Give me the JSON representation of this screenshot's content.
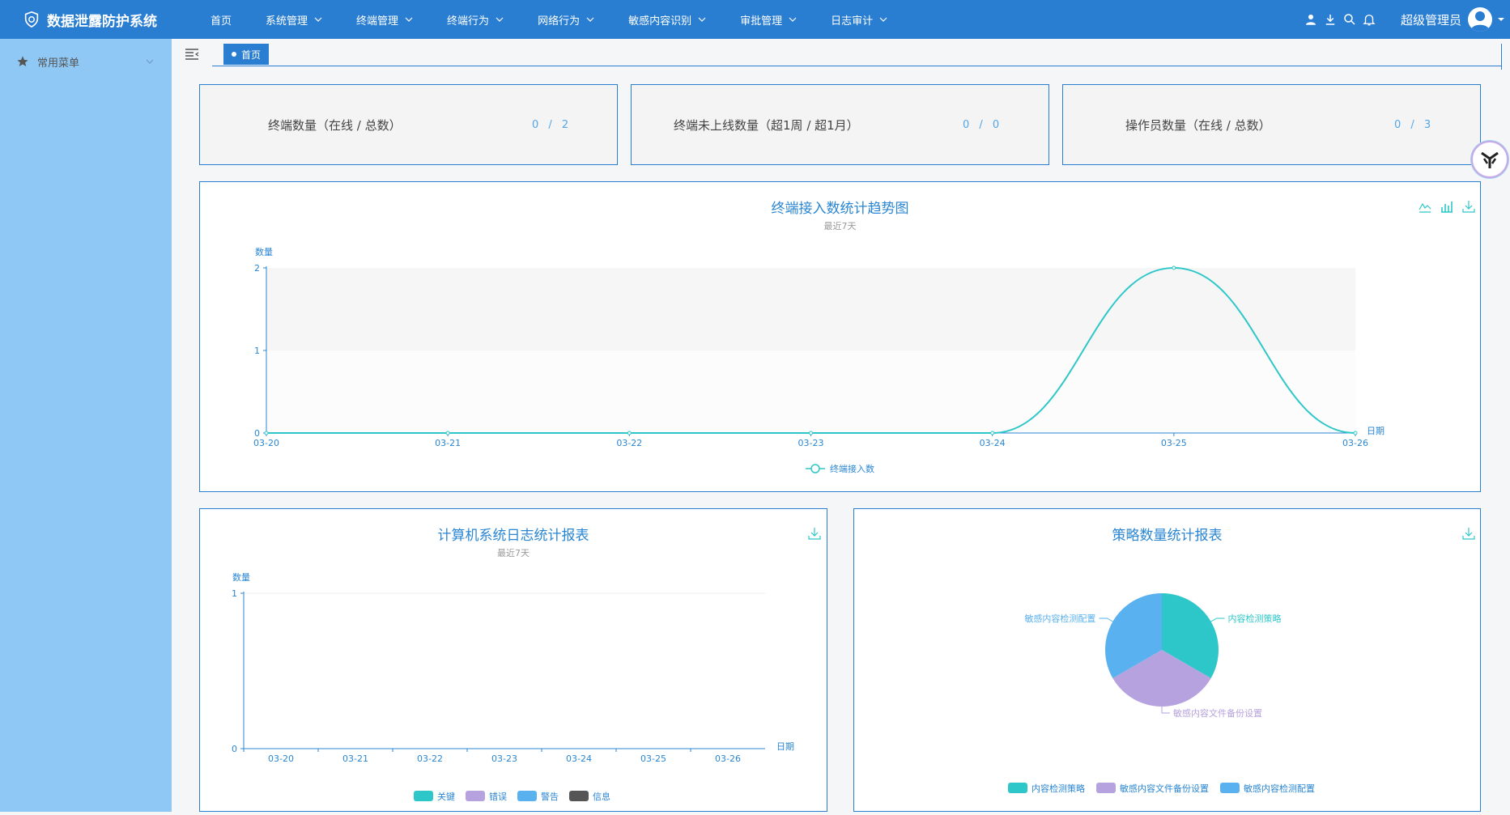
{
  "app": {
    "title": "数据泄露防护系统"
  },
  "nav": {
    "items": [
      {
        "label": "首页",
        "has_dropdown": false
      },
      {
        "label": "系统管理",
        "has_dropdown": true
      },
      {
        "label": "终端管理",
        "has_dropdown": true
      },
      {
        "label": "终端行为",
        "has_dropdown": true
      },
      {
        "label": "网络行为",
        "has_dropdown": true
      },
      {
        "label": "敏感内容识别",
        "has_dropdown": true
      },
      {
        "label": "审批管理",
        "has_dropdown": true
      },
      {
        "label": "日志审计",
        "has_dropdown": true
      }
    ]
  },
  "user": {
    "name": "超级管理员"
  },
  "sidebar": {
    "items": [
      {
        "label": "常用菜单",
        "icon": "star-icon"
      }
    ]
  },
  "tabs": [
    {
      "label": "首页",
      "active": true
    }
  ],
  "stats": [
    {
      "label": "终端数量（在线 / 总数）",
      "value": "0 / 2"
    },
    {
      "label": "终端未上线数量（超1周 / 超1月）",
      "value": "0 / 0"
    },
    {
      "label": "操作员数量（在线 / 总数）",
      "value": "0 / 3"
    }
  ],
  "colors": {
    "primary": "#2a7ed2",
    "teal": "#2ec7c9",
    "purple": "#b6a2de",
    "blue": "#5ab1ef",
    "gray": "#555555"
  },
  "chart_data": [
    {
      "type": "line",
      "title": "终端接入数统计趋势图",
      "subtitle": "最近7天",
      "ylabel": "数量",
      "xlabel": "日期",
      "categories": [
        "03-20",
        "03-21",
        "03-22",
        "03-23",
        "03-24",
        "03-25",
        "03-26"
      ],
      "series": [
        {
          "name": "终端接入数",
          "values": [
            0,
            0,
            0,
            0,
            0,
            2,
            0
          ]
        }
      ],
      "ylim": [
        0,
        2
      ],
      "yticks": [
        0,
        1,
        2
      ],
      "smooth": true
    },
    {
      "type": "bar",
      "title": "计算机系统日志统计报表",
      "subtitle": "最近7天",
      "ylabel": "数量",
      "xlabel": "日期",
      "categories": [
        "03-20",
        "03-21",
        "03-22",
        "03-23",
        "03-24",
        "03-25",
        "03-26"
      ],
      "series": [
        {
          "name": "关键",
          "values": [
            0,
            0,
            0,
            0,
            0,
            0,
            0
          ]
        },
        {
          "name": "错误",
          "values": [
            0,
            0,
            0,
            0,
            0,
            0,
            0
          ]
        },
        {
          "name": "警告",
          "values": [
            0,
            0,
            0,
            0,
            0,
            0,
            0
          ]
        },
        {
          "name": "信息",
          "values": [
            0,
            0,
            0,
            0,
            0,
            0,
            0
          ]
        }
      ],
      "ylim": [
        0,
        1
      ],
      "yticks": [
        0,
        1
      ]
    },
    {
      "type": "pie",
      "title": "策略数量统计报表",
      "categories": [
        "内容检测策略",
        "敏感内容文件备份设置",
        "敏感内容检测配置"
      ],
      "values": [
        1,
        1,
        1
      ]
    }
  ]
}
